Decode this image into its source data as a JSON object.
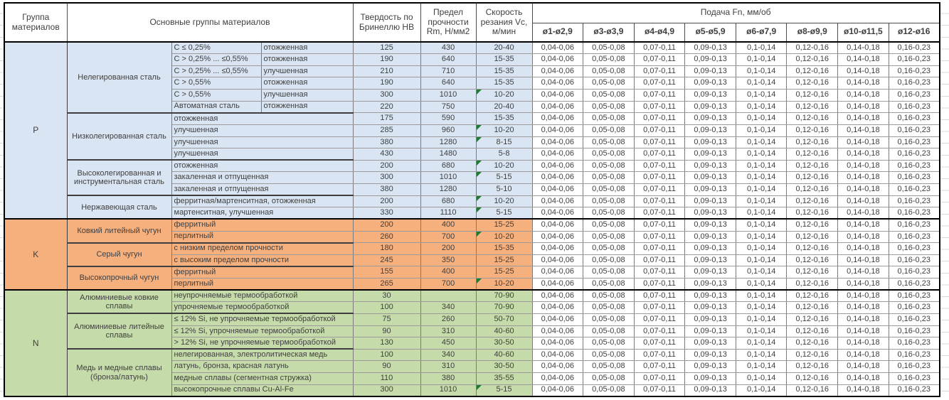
{
  "header": {
    "col_group": "Группа материалов",
    "col_main": "Основные группы материалов",
    "col_hardness": "Твердость по Бринеллю HB",
    "col_strength": "Предел прочности Rm, Н/мм2",
    "col_speed": "Скорость резания Vc, м/мин",
    "feed_title": "Подача Fn, мм/об",
    "feed_columns": [
      "ø1-ø2,9",
      "ø3-ø3,9",
      "ø4-ø4,9",
      "ø5-ø5,9",
      "ø6-ø7,9",
      "ø8-ø9,9",
      "ø10-ø11,5",
      "ø12-ø16"
    ]
  },
  "feed_values": [
    "0,04-0,06",
    "0,05-0,08",
    "0,07-0,11",
    "0,09-0,13",
    "0,1-0,14",
    "0,12-0,16",
    "0,14-0,18",
    "0,16-0,23"
  ],
  "flag_color": "#1e7b33",
  "groups": [
    {
      "letter": "P",
      "color": "#d9e5f3",
      "subgroups": [
        {
          "name": "Нелегированная сталь",
          "rows": [
            {
              "sub1": "C ≤ 0,25%",
              "sub2": "отожженная",
              "hb": "125",
              "rm": "430",
              "vc": "20-40",
              "flag": false
            },
            {
              "sub1": "C > 0,25% ... ≤0,55%",
              "sub2": "отожженная",
              "hb": "190",
              "rm": "640",
              "vc": "15-35",
              "flag": false
            },
            {
              "sub1": "C > 0,25% ... ≤0,55%",
              "sub2": "улучшенная",
              "hb": "210",
              "rm": "710",
              "vc": "15-35",
              "flag": false
            },
            {
              "sub1": "C > 0,55%",
              "sub2": "отожженная",
              "hb": "190",
              "rm": "640",
              "vc": "15-35",
              "flag": false
            },
            {
              "sub1": "C > 0,55%",
              "sub2": "улучшенная",
              "hb": "300",
              "rm": "1010",
              "vc": "10-20",
              "flag": true
            },
            {
              "sub1": "Автоматная сталь",
              "sub2": "отожженная",
              "hb": "220",
              "rm": "750",
              "vc": "20-40",
              "flag": false
            }
          ]
        },
        {
          "name": "Низколегированная сталь",
          "rows": [
            {
              "sub": "отожженная",
              "hb": "175",
              "rm": "590",
              "vc": "15-35",
              "flag": false
            },
            {
              "sub": "улучшенная",
              "hb": "285",
              "rm": "960",
              "vc": "10-20",
              "flag": true
            },
            {
              "sub": "улучшенная",
              "hb": "380",
              "rm": "1280",
              "vc": "8-15",
              "flag": true
            },
            {
              "sub": "улучшенная",
              "hb": "430",
              "rm": "1480",
              "vc": "5-8",
              "flag": false
            }
          ]
        },
        {
          "name": "Высоколегированная и инструментальная сталь",
          "rows": [
            {
              "sub": "отожженная",
              "hb": "200",
              "rm": "680",
              "vc": "10-20",
              "flag": true
            },
            {
              "sub": "закаленная и отпущенная",
              "hb": "300",
              "rm": "1010",
              "vc": "5-15",
              "flag": true
            },
            {
              "sub": "закаленная и отпущенная",
              "hb": "380",
              "rm": "1280",
              "vc": "5-10",
              "flag": false
            }
          ]
        },
        {
          "name": "Нержавеющая сталь",
          "rows": [
            {
              "sub": "ферритная/мартенситная, отожженная",
              "hb": "200",
              "rm": "680",
              "vc": "10-20",
              "flag": true
            },
            {
              "sub": "мартенситная, улучшенная",
              "hb": "330",
              "rm": "1110",
              "vc": "5-15",
              "flag": true
            }
          ]
        }
      ]
    },
    {
      "letter": "K",
      "color": "#f6b07e",
      "subgroups": [
        {
          "name": "Ковкий литейный чугун",
          "rows": [
            {
              "sub": "ферритный",
              "hb": "200",
              "rm": "400",
              "vc": "15-25",
              "flag": false
            },
            {
              "sub": "перлитный",
              "hb": "260",
              "rm": "700",
              "vc": "10-20",
              "flag": true
            }
          ]
        },
        {
          "name": "Серый чугун",
          "rows": [
            {
              "sub": "с низким пределом прочности",
              "hb": "180",
              "rm": "200",
              "vc": "15-35",
              "flag": false
            },
            {
              "sub": "с высоким пределом прочности",
              "hb": "245",
              "rm": "350",
              "vc": "15-25",
              "flag": false
            }
          ]
        },
        {
          "name": "Высокопрочный чугун",
          "rows": [
            {
              "sub": "ферритный",
              "hb": "155",
              "rm": "400",
              "vc": "15-25",
              "flag": false
            },
            {
              "sub": "перлитный",
              "hb": "265",
              "rm": "700",
              "vc": "10-20",
              "flag": true
            }
          ]
        }
      ]
    },
    {
      "letter": "N",
      "color": "#c6dbaa",
      "subgroups": [
        {
          "name": "Алюминиевые ковкие сплавы",
          "rows": [
            {
              "sub": "неупрочняемые термообработкой",
              "hb": "30",
              "rm": "",
              "vc": "70-90",
              "flag": false
            },
            {
              "sub": "упрочняемые термообработкой",
              "hb": "100",
              "rm": "340",
              "vc": "70-90",
              "flag": false
            }
          ]
        },
        {
          "name": "Алюминиевые литейные сплавы",
          "rows": [
            {
              "sub": "≤ 12% Si, не упрочняемые термообработкой",
              "hb": "75",
              "rm": "260",
              "vc": "50-70",
              "flag": false
            },
            {
              "sub": "≤ 12% Si, упрочняемые термообработкой",
              "hb": "90",
              "rm": "310",
              "vc": "40-60",
              "flag": false
            },
            {
              "sub": "> 12% Si, не упрочняемые термообработкой",
              "hb": "130",
              "rm": "450",
              "vc": "30-50",
              "flag": false
            }
          ]
        },
        {
          "name": "Медь и медные сплавы (бронза/латунь)",
          "rows": [
            {
              "sub": "нелегированная, электролитическая медь",
              "hb": "100",
              "rm": "340",
              "vc": "40-60",
              "flag": false
            },
            {
              "sub": "латунь, бронза, красная латунь",
              "hb": "90",
              "rm": "310",
              "vc": "30-50",
              "flag": false
            },
            {
              "sub": "медные сплавы (сегментная стружка)",
              "hb": "110",
              "rm": "380",
              "vc": "35-55",
              "flag": false
            },
            {
              "sub": "высокопрочные сплавы Cu-Al-Fe",
              "hb": "300",
              "rm": "1010",
              "vc": "5-15",
              "flag": true
            }
          ]
        }
      ]
    }
  ]
}
